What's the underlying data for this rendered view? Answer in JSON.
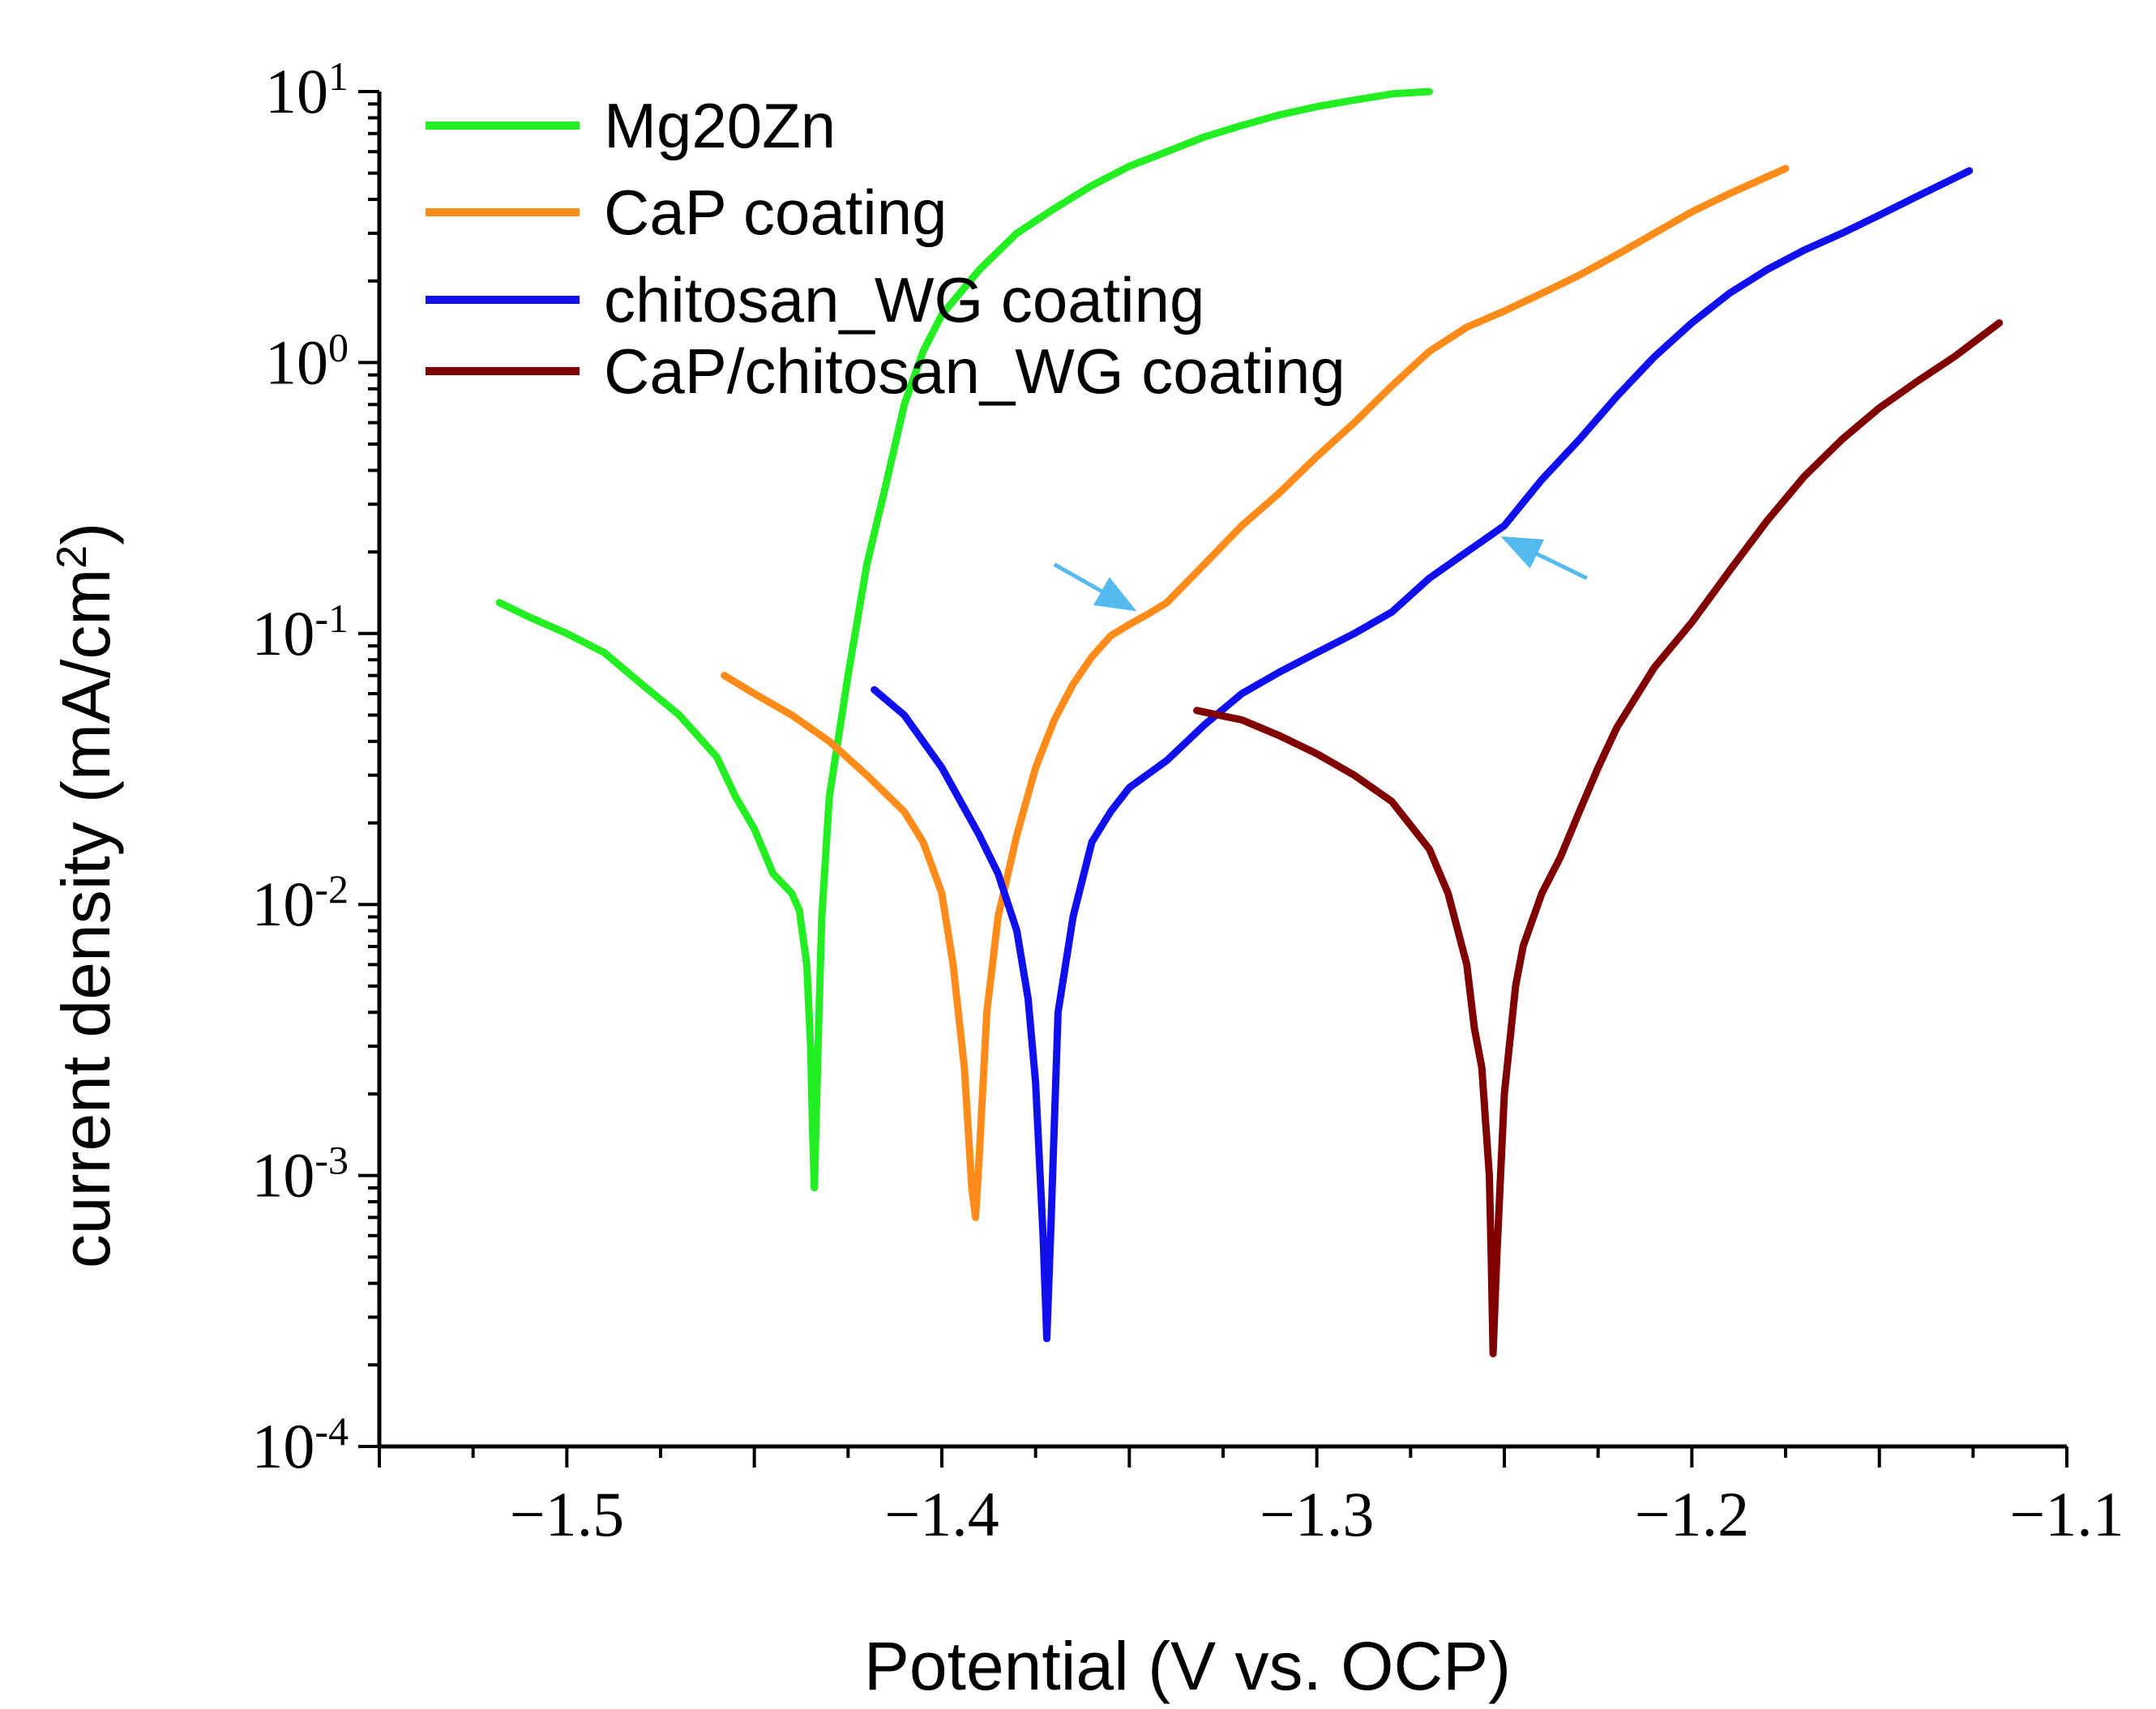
{
  "chart_data": {
    "type": "line",
    "title": "",
    "xlabel": "Potential (V vs. OCP)",
    "ylabel_main": "current density (mA/cm",
    "ylabel_sup": "2",
    "ylabel_close": ")",
    "xlim": [
      -1.55,
      -1.1
    ],
    "ylim": [
      0.0001,
      10
    ],
    "yscale": "log",
    "grid": false,
    "legend_position": "top-left",
    "x_ticks": [
      {
        "value": -1.5,
        "label": "−1.5"
      },
      {
        "value": -1.4,
        "label": "−1.4"
      },
      {
        "value": -1.3,
        "label": "−1.3"
      },
      {
        "value": -1.2,
        "label": "−1.2"
      },
      {
        "value": -1.1,
        "label": "−1.1"
      }
    ],
    "y_ticks": [
      {
        "value": 10,
        "base": "10",
        "exp": "1"
      },
      {
        "value": 1,
        "base": "10",
        "exp": "0"
      },
      {
        "value": 0.1,
        "base": "10",
        "exp": "-1"
      },
      {
        "value": 0.01,
        "base": "10",
        "exp": "-2"
      },
      {
        "value": 0.001,
        "base": "10",
        "exp": "-3"
      },
      {
        "value": 0.0001,
        "base": "10",
        "exp": "-4"
      }
    ],
    "series": [
      {
        "name": "Mg20Zn",
        "color": "#22ee22",
        "x": [
          -1.518,
          -1.51,
          -1.5,
          -1.49,
          -1.48,
          -1.47,
          -1.46,
          -1.455,
          -1.45,
          -1.445,
          -1.44,
          -1.438,
          -1.436,
          -1.435,
          -1.4345,
          -1.434,
          -1.433,
          -1.432,
          -1.43,
          -1.425,
          -1.42,
          -1.415,
          -1.41,
          -1.405,
          -1.4,
          -1.39,
          -1.38,
          -1.37,
          -1.36,
          -1.35,
          -1.34,
          -1.33,
          -1.32,
          -1.31,
          -1.3,
          -1.29,
          -1.28,
          -1.27
        ],
        "y": [
          0.13,
          0.115,
          0.1,
          0.085,
          0.065,
          0.05,
          0.035,
          0.025,
          0.019,
          0.013,
          0.011,
          0.0095,
          0.006,
          0.003,
          0.0015,
          0.0009,
          0.003,
          0.009,
          0.025,
          0.07,
          0.18,
          0.35,
          0.7,
          1.1,
          1.5,
          2.2,
          3.0,
          3.7,
          4.5,
          5.3,
          6.0,
          6.8,
          7.5,
          8.2,
          8.8,
          9.3,
          9.8,
          10.0
        ]
      },
      {
        "name": "CaP coating",
        "color": "#ff8c1a",
        "x": [
          -1.458,
          -1.45,
          -1.44,
          -1.43,
          -1.42,
          -1.41,
          -1.405,
          -1.4,
          -1.397,
          -1.394,
          -1.392,
          -1.391,
          -1.39,
          -1.388,
          -1.385,
          -1.38,
          -1.375,
          -1.37,
          -1.365,
          -1.36,
          -1.355,
          -1.35,
          -1.345,
          -1.34,
          -1.33,
          -1.32,
          -1.31,
          -1.3,
          -1.29,
          -1.28,
          -1.27,
          -1.26,
          -1.25,
          -1.24,
          -1.23,
          -1.22,
          -1.21,
          -1.2,
          -1.19,
          -1.175
        ],
        "y": [
          0.07,
          0.06,
          0.05,
          0.04,
          0.03,
          0.022,
          0.017,
          0.011,
          0.006,
          0.0025,
          0.0009,
          0.0007,
          0.0012,
          0.004,
          0.009,
          0.018,
          0.032,
          0.048,
          0.065,
          0.082,
          0.098,
          0.108,
          0.118,
          0.13,
          0.18,
          0.25,
          0.33,
          0.45,
          0.6,
          0.82,
          1.1,
          1.35,
          1.55,
          1.8,
          2.1,
          2.5,
          3.0,
          3.6,
          4.2,
          5.2
        ]
      },
      {
        "name": "chitosan_WG coating",
        "color": "#1010ee",
        "x": [
          -1.418,
          -1.41,
          -1.4,
          -1.39,
          -1.385,
          -1.38,
          -1.377,
          -1.375,
          -1.373,
          -1.372,
          -1.371,
          -1.369,
          -1.365,
          -1.36,
          -1.355,
          -1.35,
          -1.34,
          -1.33,
          -1.32,
          -1.31,
          -1.3,
          -1.29,
          -1.28,
          -1.27,
          -1.26,
          -1.25,
          -1.24,
          -1.23,
          -1.22,
          -1.21,
          -1.2,
          -1.19,
          -1.18,
          -1.17,
          -1.16,
          -1.15,
          -1.14,
          -1.126
        ],
        "y": [
          0.062,
          0.05,
          0.032,
          0.018,
          0.013,
          0.008,
          0.0045,
          0.0022,
          0.0006,
          0.00025,
          0.0006,
          0.004,
          0.009,
          0.017,
          0.022,
          0.027,
          0.034,
          0.046,
          0.06,
          0.072,
          0.085,
          0.1,
          0.12,
          0.16,
          0.2,
          0.25,
          0.37,
          0.52,
          0.75,
          1.05,
          1.4,
          1.8,
          2.2,
          2.6,
          3.0,
          3.5,
          4.1,
          5.1
        ]
      },
      {
        "name": "CaP/chitosan_WG coating",
        "color": "#800000",
        "x": [
          -1.332,
          -1.32,
          -1.31,
          -1.3,
          -1.29,
          -1.28,
          -1.27,
          -1.265,
          -1.26,
          -1.258,
          -1.256,
          -1.254,
          -1.2535,
          -1.253,
          -1.252,
          -1.25,
          -1.247,
          -1.245,
          -1.24,
          -1.235,
          -1.23,
          -1.225,
          -1.22,
          -1.21,
          -1.2,
          -1.19,
          -1.18,
          -1.17,
          -1.16,
          -1.15,
          -1.14,
          -1.13,
          -1.118
        ],
        "y": [
          0.052,
          0.048,
          0.042,
          0.036,
          0.03,
          0.024,
          0.016,
          0.011,
          0.006,
          0.0035,
          0.0025,
          0.001,
          0.0005,
          0.00022,
          0.0005,
          0.002,
          0.005,
          0.007,
          0.011,
          0.015,
          0.022,
          0.032,
          0.045,
          0.075,
          0.11,
          0.17,
          0.26,
          0.38,
          0.52,
          0.68,
          0.85,
          1.05,
          1.4
        ]
      }
    ],
    "annotations": [
      {
        "type": "arrow",
        "color": "#55bbee",
        "from": [
          -1.37,
          0.18
        ],
        "to": [
          -1.349,
          0.123
        ]
      },
      {
        "type": "arrow",
        "color": "#55bbee",
        "from": [
          -1.228,
          0.16
        ],
        "to": [
          -1.25,
          0.225
        ]
      }
    ]
  }
}
